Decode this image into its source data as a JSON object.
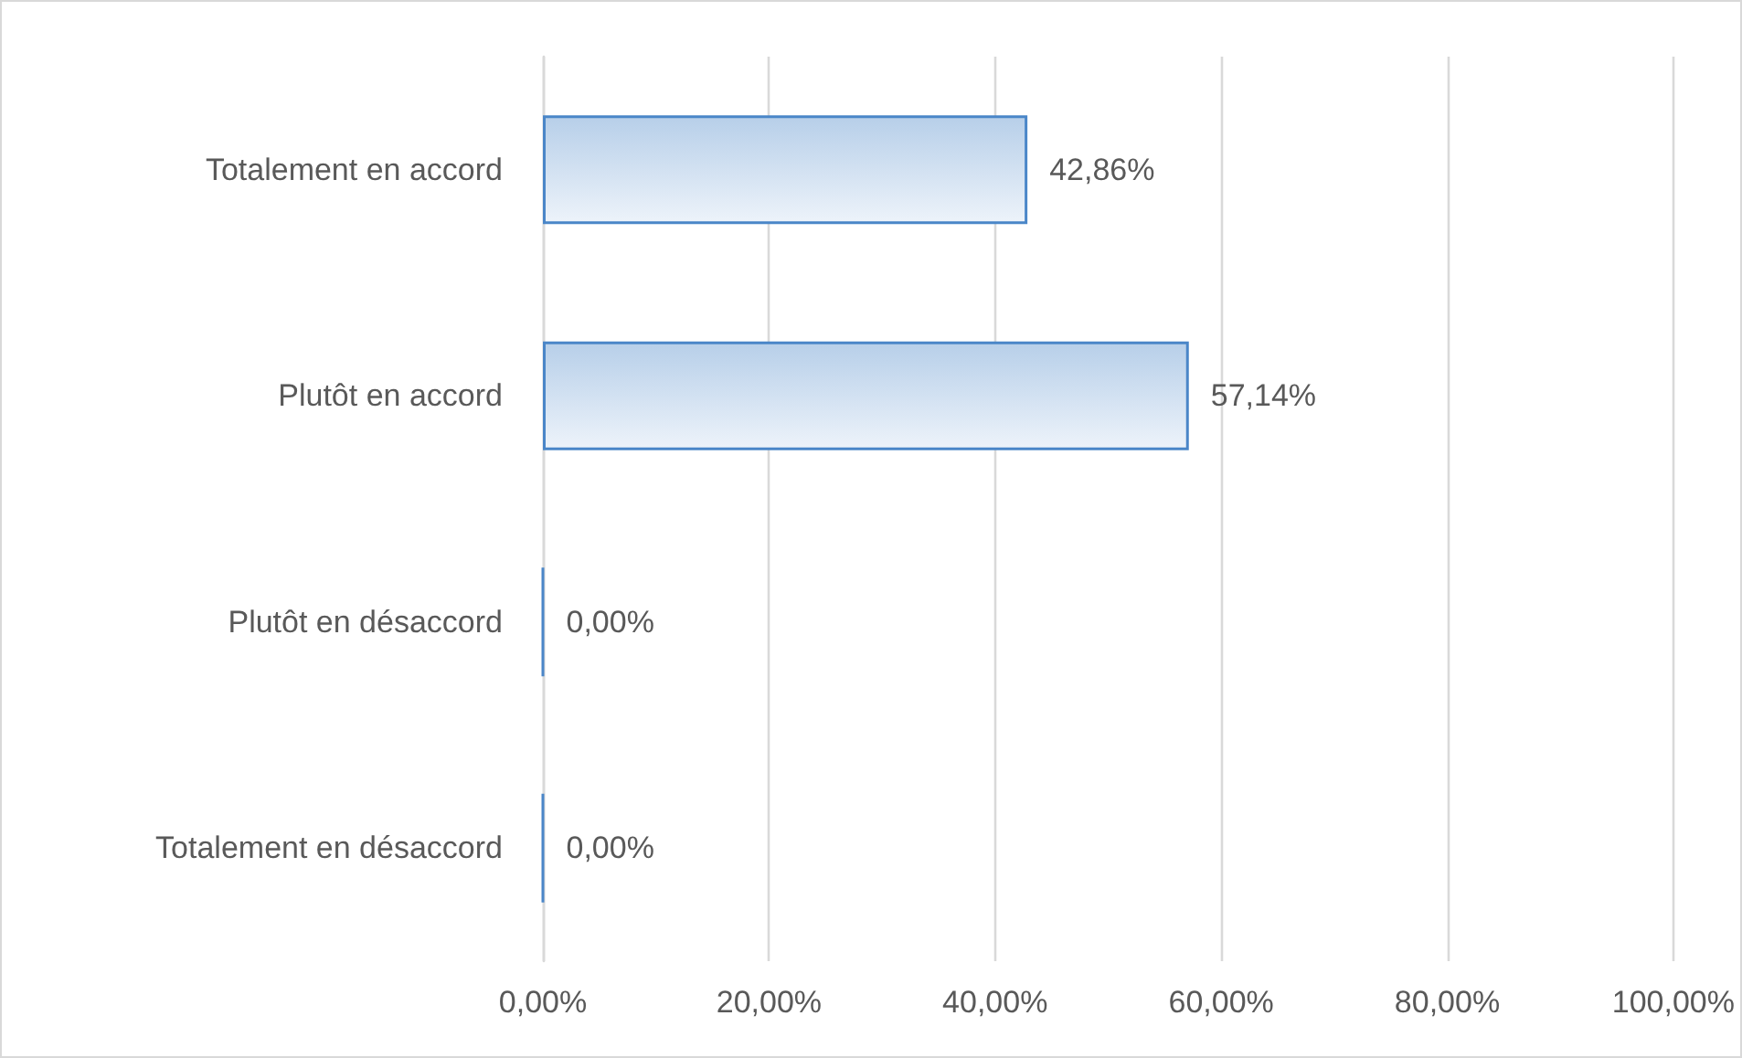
{
  "chart_data": {
    "type": "bar",
    "orientation": "horizontal",
    "categories": [
      "Totalement en accord",
      "Plutôt en accord",
      "Plutôt en désaccord",
      "Totalement en désaccord"
    ],
    "values": [
      42.86,
      57.14,
      0,
      0
    ],
    "value_labels": [
      "42,86%",
      "57,14%",
      "0,00%",
      "0,00%"
    ],
    "color": "#4a86c8",
    "xlim": [
      0,
      100
    ],
    "xticks": [
      {
        "value": 0,
        "label": "0,00%"
      },
      {
        "value": 20,
        "label": "20,00%"
      },
      {
        "value": 40,
        "label": "40,00%"
      },
      {
        "value": 60,
        "label": "60,00%"
      },
      {
        "value": 80,
        "label": "80,00%"
      },
      {
        "value": 100,
        "label": "100,00%"
      }
    ],
    "grid": "x"
  }
}
